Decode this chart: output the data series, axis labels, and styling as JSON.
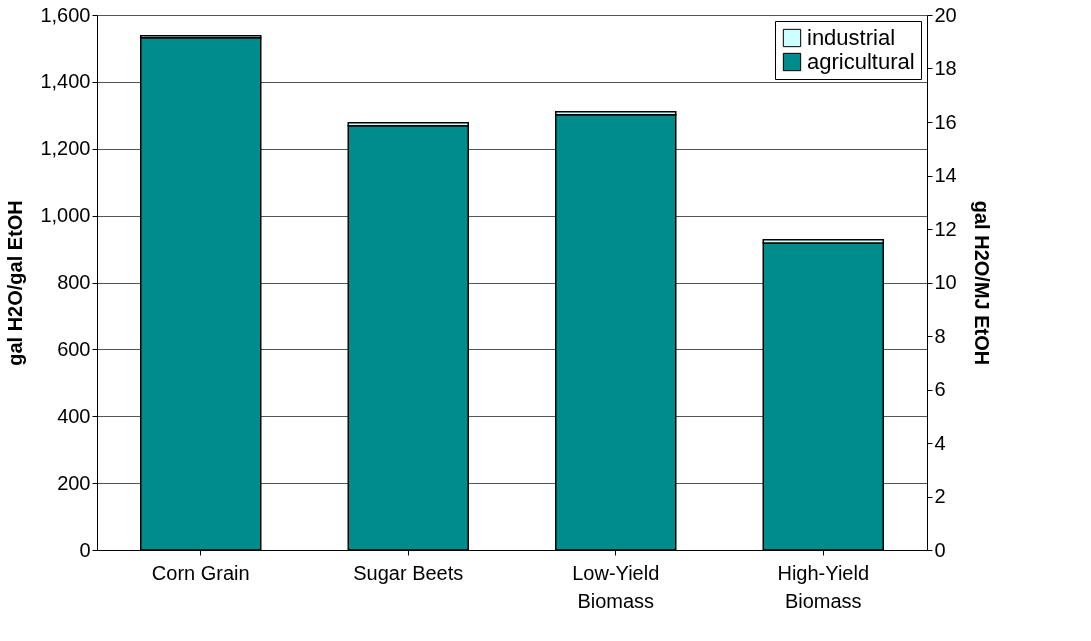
{
  "chart_data": {
    "type": "bar",
    "stacked": true,
    "categories": [
      "Corn Grain",
      "Sugar Beets",
      "Low-Yield Biomass",
      "High-Yield Biomass"
    ],
    "series": [
      {
        "name": "agricultural",
        "color": "#008c8c",
        "values": [
          1532,
          1269,
          1302,
          918
        ]
      },
      {
        "name": "industrial",
        "color": "#ccffff",
        "values": [
          6,
          9,
          9,
          10
        ]
      }
    ],
    "ylabel": "gal H2O/gal EtOH",
    "y2label": "gal H2O/MJ EtOH",
    "ylim": [
      0,
      1600
    ],
    "yticks": [
      0,
      200,
      400,
      600,
      800,
      {
        "value": 1000,
        "label": "1,000"
      },
      {
        "value": 1200,
        "label": "1,200"
      },
      {
        "value": 1400,
        "label": "1,400"
      },
      {
        "value": 1600,
        "label": "1,600"
      }
    ],
    "y2lim": [
      0,
      20
    ],
    "y2ticks": [
      0,
      2,
      4,
      6,
      8,
      10,
      12,
      14,
      16,
      18,
      20
    ],
    "grid": "y",
    "legend": "top right"
  }
}
